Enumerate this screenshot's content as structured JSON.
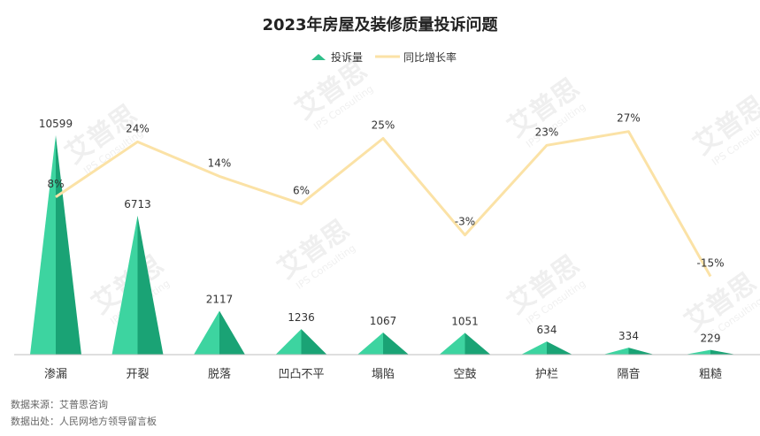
{
  "chart_data": {
    "type": "bar",
    "title": "2023年房屋及装修质量投诉问题",
    "categories": [
      "渗漏",
      "开裂",
      "脱落",
      "凹凸不平",
      "塌陷",
      "空鼓",
      "护栏",
      "隔音",
      "粗糙"
    ],
    "series": [
      {
        "name": "投诉量",
        "type": "bar",
        "axis": "left",
        "values": [
          10599,
          6713,
          2117,
          1236,
          1067,
          1051,
          634,
          334,
          229
        ],
        "labels": [
          "10599",
          "6713",
          "2117",
          "1236",
          "1067",
          "1051",
          "634",
          "334",
          "229"
        ],
        "color": "#2fbf8a"
      },
      {
        "name": "同比增长率",
        "type": "line",
        "axis": "right",
        "values": [
          8,
          24,
          14,
          6,
          25,
          -3,
          23,
          27,
          -15
        ],
        "labels": [
          "8%",
          "24%",
          "14%",
          "6%",
          "25%",
          "-3%",
          "23%",
          "27%",
          "-15%"
        ],
        "color": "#fbe2a6"
      }
    ],
    "legend": "top-center",
    "grid": false
  },
  "watermark": {
    "brand": "艾普思",
    "sub": "IPS Consulting"
  },
  "source": {
    "line1": "数据来源：艾普思咨询",
    "line2": "数据出处：人民网地方领导留言板"
  },
  "colors": {
    "bar_light": "#3dd4a0",
    "bar_dark": "#1aa375",
    "line": "#fbe2a6",
    "axis": "#bfbfbf",
    "text": "#333333"
  }
}
